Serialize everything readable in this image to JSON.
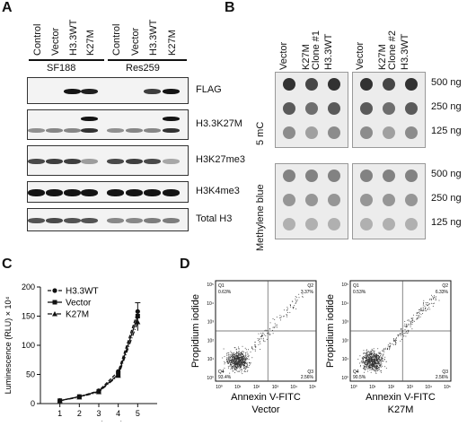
{
  "panels": {
    "a": "A",
    "b": "B",
    "c": "C",
    "d": "D"
  },
  "panel_a": {
    "lane_labels": [
      "Control",
      "Vector",
      "H3.3WT",
      "K27M",
      "Control",
      "Vector",
      "H3.3WT",
      "K27M"
    ],
    "groups": [
      "SF188",
      "Res259"
    ],
    "blots": [
      "FLAG",
      "H3.3K27M",
      "H3K27me3",
      "H3K4me3",
      "Total H3"
    ]
  },
  "panel_b": {
    "columns_left": [
      "Vector",
      "K27M\nClone #1",
      "H3.3WT"
    ],
    "columns_right": [
      "Vector",
      "K27M\nClone #2",
      "H3.3WT"
    ],
    "row_groups": [
      "5 mC",
      "Methylene blue"
    ],
    "amounts": [
      "500 ng",
      "250 ng",
      "125 ng"
    ]
  },
  "chart_data": [
    {
      "type": "line",
      "xlabel": "Days in culture",
      "ylabel": "Luminescence (RLU) × 10⁴",
      "x": [
        1,
        2,
        3,
        4,
        5
      ],
      "xlim": [
        0,
        6
      ],
      "ylim": [
        0,
        200
      ],
      "yticks": [
        0,
        50,
        100,
        150,
        200
      ],
      "xticks": [
        1,
        2,
        3,
        4,
        5
      ],
      "legend_position": "top-left",
      "series": [
        {
          "name": "H3.3WT",
          "values": [
            5,
            12,
            22,
            55,
            158
          ],
          "style": "dashed",
          "marker": "circle"
        },
        {
          "name": "Vector",
          "values": [
            5,
            12,
            21,
            50,
            150
          ],
          "style": "solid",
          "marker": "square"
        },
        {
          "name": "K27M",
          "values": [
            5,
            11,
            20,
            48,
            140
          ],
          "style": "dash-dot",
          "marker": "triangle"
        }
      ],
      "error_last": 15
    },
    {
      "type": "scatter",
      "title": "Vector",
      "xlabel": "Annexin V-FITC",
      "ylabel": "Propidium iodide",
      "xticks": [
        "10⁰",
        "10¹",
        "10²",
        "10³",
        "10⁴",
        "10⁵"
      ],
      "yticks": [
        "10⁰",
        "10¹",
        "10²",
        "10³",
        "10⁴",
        "10⁵"
      ],
      "quadrants": {
        "Q1": "0.63%",
        "Q2": "3.37%",
        "Q3": "2.56%",
        "Q4": "93.4%"
      }
    },
    {
      "type": "scatter",
      "title": "K27M",
      "xlabel": "Annexin V-FITC",
      "ylabel": "Propidium iodide",
      "xticks": [
        "10⁰",
        "10¹",
        "10²",
        "10³",
        "10⁴",
        "10⁵"
      ],
      "yticks": [
        "10⁰",
        "10¹",
        "10²",
        "10³",
        "10⁴",
        "10⁵"
      ],
      "quadrants": {
        "Q1": "0.53%",
        "Q2": "6.33%",
        "Q3": "2.56%",
        "Q4": "90.5%"
      }
    }
  ],
  "flow_labels": {
    "q1": "Q1",
    "q2": "Q2",
    "q3": "Q3",
    "q4": "Q4"
  }
}
